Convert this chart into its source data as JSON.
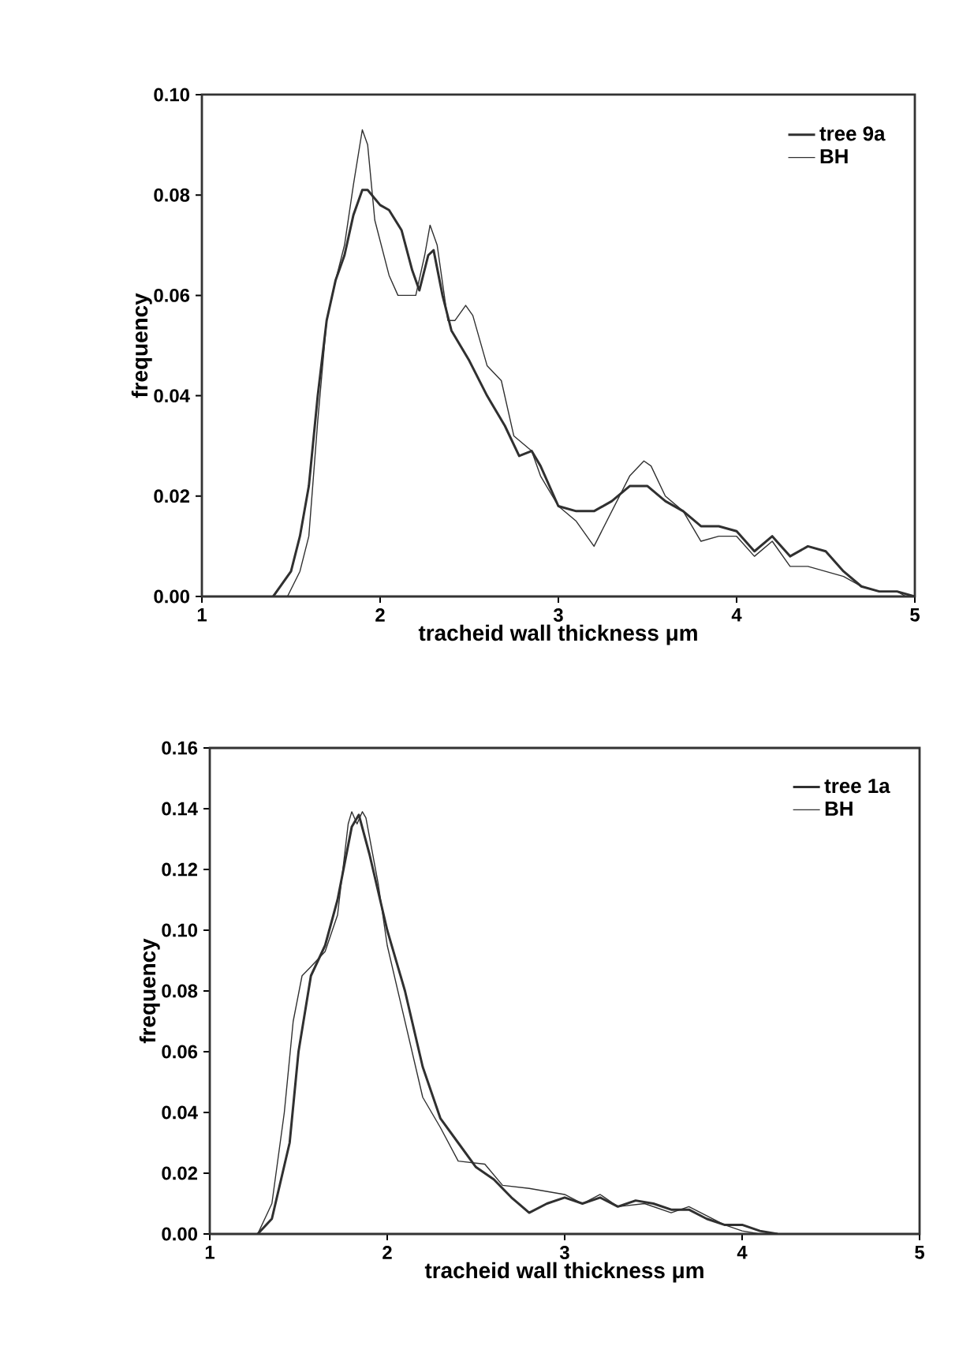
{
  "chart_data": [
    {
      "type": "line",
      "xlabel": "tracheid wall thickness  μm",
      "ylabel": "frequency",
      "xlim": [
        1,
        5
      ],
      "ylim": [
        0,
        0.1
      ],
      "xticks": [
        1,
        2,
        3,
        4,
        5
      ],
      "yticks": [
        {
          "value": 0,
          "label": "0.00"
        },
        {
          "value": 0.02,
          "label": "0.02"
        },
        {
          "value": 0.04,
          "label": "0.04"
        },
        {
          "value": 0.06,
          "label": "0.06"
        },
        {
          "value": 0.08,
          "label": "0.08"
        },
        {
          "value": 0.1,
          "label": "0.10"
        }
      ],
      "legend": "top right",
      "grid": false,
      "marker": "none",
      "line_style": "solid",
      "series": [
        {
          "name": "tree 9a",
          "color": "#303030",
          "x": [
            1.4,
            1.5,
            1.55,
            1.6,
            1.65,
            1.7,
            1.75,
            1.8,
            1.85,
            1.9,
            1.93,
            2.0,
            2.05,
            2.12,
            2.18,
            2.22,
            2.27,
            2.3,
            2.35,
            2.4,
            2.5,
            2.6,
            2.7,
            2.78,
            2.85,
            2.9,
            3.0,
            3.1,
            3.2,
            3.3,
            3.4,
            3.5,
            3.6,
            3.7,
            3.8,
            3.9,
            4.0,
            4.1,
            4.2,
            4.3,
            4.4,
            4.5,
            4.6,
            4.7,
            4.8,
            4.9,
            5.0
          ],
          "values": [
            0,
            0.005,
            0.012,
            0.022,
            0.04,
            0.055,
            0.063,
            0.068,
            0.076,
            0.081,
            0.081,
            0.078,
            0.077,
            0.073,
            0.065,
            0.061,
            0.068,
            0.069,
            0.06,
            0.053,
            0.047,
            0.04,
            0.034,
            0.028,
            0.029,
            0.026,
            0.018,
            0.017,
            0.017,
            0.019,
            0.022,
            0.022,
            0.019,
            0.017,
            0.014,
            0.014,
            0.013,
            0.009,
            0.012,
            0.008,
            0.01,
            0.009,
            0.005,
            0.002,
            0.001,
            0.001,
            0
          ]
        },
        {
          "name": "BH",
          "color": "#303030",
          "x": [
            1.48,
            1.55,
            1.6,
            1.65,
            1.7,
            1.75,
            1.8,
            1.85,
            1.9,
            1.93,
            1.97,
            2.05,
            2.1,
            2.2,
            2.25,
            2.28,
            2.32,
            2.38,
            2.42,
            2.48,
            2.52,
            2.6,
            2.68,
            2.75,
            2.85,
            2.9,
            3.0,
            3.1,
            3.2,
            3.3,
            3.4,
            3.48,
            3.52,
            3.6,
            3.7,
            3.8,
            3.9,
            4.0,
            4.1,
            4.2,
            4.3,
            4.4,
            4.5,
            4.6,
            4.7,
            4.8,
            4.9,
            4.95
          ],
          "values": [
            0,
            0.005,
            0.012,
            0.035,
            0.055,
            0.063,
            0.07,
            0.082,
            0.093,
            0.09,
            0.075,
            0.064,
            0.06,
            0.06,
            0.068,
            0.074,
            0.07,
            0.055,
            0.055,
            0.058,
            0.056,
            0.046,
            0.043,
            0.032,
            0.029,
            0.024,
            0.018,
            0.015,
            0.01,
            0.017,
            0.024,
            0.027,
            0.026,
            0.02,
            0.017,
            0.011,
            0.012,
            0.012,
            0.008,
            0.011,
            0.006,
            0.006,
            0.005,
            0.004,
            0.002,
            0.001,
            0.001,
            0
          ]
        }
      ]
    },
    {
      "type": "line",
      "xlabel": "tracheid wall thickness  μm",
      "ylabel": "frequency",
      "xlim": [
        1,
        5
      ],
      "ylim": [
        0,
        0.16
      ],
      "xticks": [
        1,
        2,
        3,
        4,
        5
      ],
      "yticks": [
        {
          "value": 0,
          "label": "0.00"
        },
        {
          "value": 0.02,
          "label": "0.02"
        },
        {
          "value": 0.04,
          "label": "0.04"
        },
        {
          "value": 0.06,
          "label": "0.06"
        },
        {
          "value": 0.08,
          "label": "0.08"
        },
        {
          "value": 0.1,
          "label": "0.10"
        },
        {
          "value": 0.12,
          "label": "0.12"
        },
        {
          "value": 0.14,
          "label": "0.14"
        },
        {
          "value": 0.16,
          "label": "0.16"
        }
      ],
      "legend": "top right",
      "grid": false,
      "marker": "none",
      "line_style": "solid",
      "series": [
        {
          "name": "tree 1a",
          "color": "#303030",
          "x": [
            1.27,
            1.35,
            1.45,
            1.5,
            1.57,
            1.65,
            1.72,
            1.8,
            1.84,
            1.9,
            2.0,
            2.1,
            2.2,
            2.3,
            2.4,
            2.5,
            2.6,
            2.7,
            2.8,
            2.9,
            3.0,
            3.1,
            3.2,
            3.3,
            3.4,
            3.5,
            3.6,
            3.7,
            3.8,
            3.9,
            4.0,
            4.1,
            4.2
          ],
          "values": [
            0,
            0.005,
            0.03,
            0.06,
            0.085,
            0.095,
            0.11,
            0.134,
            0.138,
            0.125,
            0.1,
            0.08,
            0.055,
            0.038,
            0.03,
            0.022,
            0.018,
            0.012,
            0.007,
            0.01,
            0.012,
            0.01,
            0.012,
            0.009,
            0.011,
            0.01,
            0.008,
            0.008,
            0.005,
            0.003,
            0.003,
            0.001,
            0
          ]
        },
        {
          "name": "BH",
          "color": "#303030",
          "x": [
            1.27,
            1.35,
            1.42,
            1.47,
            1.52,
            1.57,
            1.65,
            1.72,
            1.78,
            1.8,
            1.83,
            1.86,
            1.88,
            1.95,
            2.0,
            2.1,
            2.2,
            2.3,
            2.4,
            2.55,
            2.65,
            2.8,
            3.0,
            3.1,
            3.2,
            3.3,
            3.45,
            3.6,
            3.7,
            3.8,
            3.9,
            4.0,
            4.1
          ],
          "values": [
            0,
            0.01,
            0.04,
            0.07,
            0.085,
            0.088,
            0.093,
            0.105,
            0.135,
            0.139,
            0.135,
            0.139,
            0.137,
            0.115,
            0.095,
            0.07,
            0.045,
            0.035,
            0.024,
            0.023,
            0.016,
            0.015,
            0.013,
            0.01,
            0.013,
            0.009,
            0.01,
            0.007,
            0.009,
            0.006,
            0.003,
            0.001,
            0
          ]
        }
      ]
    }
  ]
}
